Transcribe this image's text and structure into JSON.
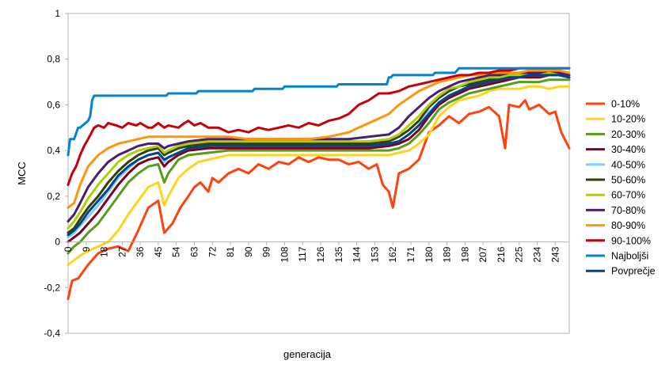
{
  "chart_data": {
    "type": "line",
    "title": "",
    "xlabel": "generacija",
    "ylabel": "MCC",
    "xlim": [
      0,
      250
    ],
    "ylim": [
      -0.4,
      1
    ],
    "yticks": [
      "-0,4",
      "-0,2",
      "0",
      "0,2",
      "0,4",
      "0,6",
      "0,8",
      "1"
    ],
    "xticks": [
      "0",
      "9",
      "18",
      "27",
      "36",
      "45",
      "54",
      "63",
      "72",
      "81",
      "90",
      "99",
      "108",
      "117",
      "126",
      "135",
      "144",
      "153",
      "162",
      "171",
      "180",
      "189",
      "198",
      "207",
      "216",
      "225",
      "234",
      "243"
    ],
    "grid": false,
    "legend_position": "right",
    "series": [
      {
        "name": "0-10%",
        "color": "#ff420e",
        "x": [
          0,
          2,
          5,
          10,
          15,
          20,
          25,
          30,
          35,
          40,
          45,
          48,
          52,
          56,
          60,
          63,
          66,
          70,
          72,
          75,
          80,
          85,
          90,
          95,
          100,
          105,
          110,
          115,
          120,
          125,
          130,
          135,
          140,
          145,
          150,
          154,
          157,
          160,
          162,
          165,
          170,
          175,
          180,
          185,
          190,
          195,
          200,
          205,
          210,
          215,
          218,
          220,
          225,
          228,
          230,
          235,
          240,
          243,
          246,
          250
        ],
        "y": [
          -0.25,
          -0.17,
          -0.16,
          -0.1,
          -0.05,
          -0.03,
          -0.02,
          -0.04,
          0.05,
          0.15,
          0.18,
          0.04,
          0.08,
          0.15,
          0.2,
          0.24,
          0.26,
          0.22,
          0.28,
          0.26,
          0.3,
          0.32,
          0.3,
          0.34,
          0.32,
          0.35,
          0.34,
          0.37,
          0.35,
          0.37,
          0.36,
          0.36,
          0.34,
          0.35,
          0.32,
          0.34,
          0.25,
          0.22,
          0.15,
          0.3,
          0.32,
          0.36,
          0.48,
          0.51,
          0.55,
          0.52,
          0.56,
          0.57,
          0.59,
          0.55,
          0.41,
          0.6,
          0.59,
          0.62,
          0.58,
          0.6,
          0.56,
          0.57,
          0.48,
          0.41
        ]
      },
      {
        "name": "10-20%",
        "color": "#ffd320",
        "x": [
          0,
          3,
          6,
          10,
          15,
          20,
          25,
          30,
          35,
          40,
          45,
          48,
          50,
          55,
          60,
          65,
          70,
          80,
          90,
          100,
          110,
          120,
          130,
          140,
          150,
          160,
          165,
          170,
          175,
          180,
          185,
          190,
          195,
          200,
          205,
          210,
          215,
          220,
          225,
          230,
          235,
          240,
          245,
          250
        ],
        "y": [
          -0.1,
          -0.08,
          -0.06,
          -0.04,
          -0.02,
          0.0,
          0.05,
          0.12,
          0.18,
          0.24,
          0.26,
          0.16,
          0.2,
          0.28,
          0.32,
          0.35,
          0.36,
          0.38,
          0.38,
          0.38,
          0.38,
          0.38,
          0.38,
          0.38,
          0.38,
          0.38,
          0.39,
          0.4,
          0.43,
          0.47,
          0.55,
          0.59,
          0.62,
          0.63,
          0.64,
          0.66,
          0.67,
          0.67,
          0.67,
          0.68,
          0.68,
          0.67,
          0.68,
          0.68
        ]
      },
      {
        "name": "20-30%",
        "color": "#579d1c",
        "x": [
          0,
          3,
          6,
          10,
          15,
          20,
          25,
          30,
          35,
          40,
          45,
          48,
          50,
          55,
          60,
          70,
          80,
          90,
          100,
          110,
          120,
          130,
          140,
          150,
          160,
          165,
          170,
          175,
          180,
          185,
          190,
          195,
          200,
          205,
          210,
          215,
          220,
          225,
          230,
          235,
          240,
          245,
          250
        ],
        "y": [
          -0.05,
          -0.02,
          0.0,
          0.04,
          0.08,
          0.14,
          0.2,
          0.26,
          0.3,
          0.33,
          0.34,
          0.26,
          0.3,
          0.36,
          0.38,
          0.39,
          0.4,
          0.4,
          0.4,
          0.4,
          0.4,
          0.4,
          0.4,
          0.4,
          0.4,
          0.41,
          0.43,
          0.47,
          0.52,
          0.58,
          0.61,
          0.63,
          0.65,
          0.66,
          0.67,
          0.68,
          0.69,
          0.7,
          0.7,
          0.7,
          0.71,
          0.71,
          0.71
        ]
      },
      {
        "name": "30-40%",
        "color": "#7e0021",
        "x": [
          0,
          3,
          6,
          10,
          15,
          20,
          25,
          30,
          35,
          40,
          45,
          48,
          50,
          55,
          60,
          70,
          80,
          90,
          100,
          110,
          120,
          130,
          140,
          150,
          160,
          165,
          170,
          175,
          180,
          185,
          190,
          195,
          200,
          205,
          210,
          215,
          220,
          225,
          230,
          235,
          240,
          245,
          250
        ],
        "y": [
          0.0,
          0.02,
          0.04,
          0.08,
          0.13,
          0.19,
          0.25,
          0.3,
          0.34,
          0.36,
          0.37,
          0.33,
          0.35,
          0.38,
          0.4,
          0.41,
          0.41,
          0.41,
          0.41,
          0.41,
          0.41,
          0.41,
          0.41,
          0.41,
          0.42,
          0.43,
          0.45,
          0.49,
          0.55,
          0.6,
          0.63,
          0.65,
          0.67,
          0.68,
          0.69,
          0.7,
          0.71,
          0.72,
          0.72,
          0.72,
          0.73,
          0.73,
          0.72
        ]
      },
      {
        "name": "40-50%",
        "color": "#83caff",
        "x": [
          0,
          3,
          6,
          10,
          15,
          20,
          25,
          30,
          35,
          40,
          45,
          48,
          50,
          55,
          60,
          70,
          80,
          90,
          100,
          110,
          120,
          130,
          140,
          150,
          160,
          165,
          170,
          175,
          180,
          185,
          190,
          195,
          200,
          205,
          210,
          215,
          220,
          225,
          230,
          235,
          240,
          245,
          250
        ],
        "y": [
          0.02,
          0.04,
          0.07,
          0.11,
          0.16,
          0.22,
          0.28,
          0.32,
          0.36,
          0.38,
          0.39,
          0.35,
          0.37,
          0.39,
          0.41,
          0.42,
          0.42,
          0.42,
          0.42,
          0.42,
          0.42,
          0.42,
          0.42,
          0.42,
          0.43,
          0.44,
          0.47,
          0.51,
          0.57,
          0.61,
          0.64,
          0.66,
          0.68,
          0.69,
          0.7,
          0.71,
          0.72,
          0.72,
          0.73,
          0.73,
          0.73,
          0.73,
          0.72
        ]
      },
      {
        "name": "50-60%",
        "color": "#314004",
        "x": [
          0,
          3,
          6,
          10,
          15,
          20,
          25,
          30,
          35,
          40,
          45,
          48,
          50,
          55,
          60,
          70,
          80,
          90,
          100,
          110,
          120,
          130,
          140,
          150,
          160,
          165,
          170,
          175,
          180,
          185,
          190,
          195,
          200,
          205,
          210,
          215,
          220,
          225,
          230,
          235,
          240,
          245,
          250
        ],
        "y": [
          0.04,
          0.06,
          0.1,
          0.15,
          0.2,
          0.26,
          0.31,
          0.35,
          0.38,
          0.4,
          0.41,
          0.38,
          0.39,
          0.41,
          0.42,
          0.43,
          0.43,
          0.43,
          0.43,
          0.43,
          0.43,
          0.43,
          0.43,
          0.43,
          0.44,
          0.46,
          0.49,
          0.53,
          0.59,
          0.63,
          0.66,
          0.68,
          0.69,
          0.7,
          0.71,
          0.72,
          0.73,
          0.73,
          0.74,
          0.74,
          0.74,
          0.74,
          0.73
        ]
      },
      {
        "name": "60-70%",
        "color": "#aecf00",
        "x": [
          0,
          3,
          6,
          10,
          15,
          20,
          25,
          30,
          35,
          40,
          45,
          48,
          50,
          55,
          60,
          70,
          80,
          90,
          100,
          110,
          120,
          130,
          140,
          150,
          160,
          165,
          170,
          175,
          180,
          185,
          190,
          195,
          200,
          205,
          210,
          215,
          220,
          225,
          230,
          235,
          240,
          245,
          250
        ],
        "y": [
          0.06,
          0.09,
          0.13,
          0.19,
          0.25,
          0.3,
          0.35,
          0.38,
          0.4,
          0.41,
          0.42,
          0.39,
          0.4,
          0.42,
          0.43,
          0.44,
          0.44,
          0.44,
          0.44,
          0.44,
          0.44,
          0.44,
          0.44,
          0.44,
          0.45,
          0.47,
          0.51,
          0.55,
          0.6,
          0.64,
          0.67,
          0.68,
          0.7,
          0.71,
          0.72,
          0.72,
          0.73,
          0.73,
          0.74,
          0.74,
          0.74,
          0.74,
          0.73
        ]
      },
      {
        "name": "70-80%",
        "color": "#4b1f6f",
        "x": [
          0,
          3,
          6,
          10,
          15,
          20,
          25,
          30,
          35,
          40,
          45,
          48,
          50,
          55,
          60,
          70,
          80,
          90,
          100,
          110,
          120,
          130,
          140,
          150,
          160,
          165,
          170,
          175,
          180,
          185,
          190,
          195,
          200,
          205,
          210,
          215,
          220,
          225,
          230,
          235,
          240,
          245,
          250
        ],
        "y": [
          0.09,
          0.12,
          0.17,
          0.24,
          0.3,
          0.35,
          0.38,
          0.4,
          0.42,
          0.43,
          0.43,
          0.41,
          0.42,
          0.43,
          0.44,
          0.45,
          0.45,
          0.45,
          0.45,
          0.45,
          0.45,
          0.45,
          0.45,
          0.46,
          0.47,
          0.5,
          0.55,
          0.59,
          0.63,
          0.66,
          0.68,
          0.7,
          0.71,
          0.72,
          0.73,
          0.73,
          0.74,
          0.74,
          0.74,
          0.74,
          0.75,
          0.74,
          0.73
        ]
      },
      {
        "name": "80-90%",
        "color": "#ff950e",
        "x": [
          0,
          3,
          6,
          10,
          15,
          20,
          25,
          30,
          35,
          40,
          45,
          50,
          55,
          60,
          70,
          80,
          90,
          100,
          110,
          120,
          130,
          140,
          145,
          150,
          155,
          160,
          165,
          170,
          175,
          180,
          185,
          190,
          195,
          200,
          205,
          210,
          215,
          220,
          225,
          230,
          235,
          240,
          245,
          250
        ],
        "y": [
          0.15,
          0.17,
          0.25,
          0.33,
          0.38,
          0.41,
          0.43,
          0.44,
          0.45,
          0.46,
          0.46,
          0.46,
          0.46,
          0.46,
          0.46,
          0.46,
          0.45,
          0.45,
          0.45,
          0.45,
          0.46,
          0.48,
          0.5,
          0.52,
          0.54,
          0.56,
          0.6,
          0.63,
          0.66,
          0.68,
          0.7,
          0.71,
          0.72,
          0.73,
          0.73,
          0.74,
          0.74,
          0.74,
          0.74,
          0.75,
          0.75,
          0.75,
          0.75,
          0.74
        ]
      },
      {
        "name": "90-100%",
        "color": "#c5000b",
        "x": [
          0,
          2,
          4,
          6,
          8,
          10,
          13,
          15,
          18,
          20,
          24,
          27,
          30,
          34,
          36,
          40,
          42,
          45,
          48,
          50,
          55,
          58,
          60,
          63,
          66,
          70,
          75,
          80,
          85,
          90,
          95,
          100,
          105,
          110,
          115,
          120,
          125,
          130,
          135,
          140,
          145,
          150,
          155,
          160,
          165,
          170,
          175,
          180,
          185,
          190,
          195,
          200,
          205,
          210,
          215,
          220,
          225,
          230,
          235,
          240,
          245,
          250
        ],
        "y": [
          0.25,
          0.3,
          0.33,
          0.38,
          0.42,
          0.45,
          0.5,
          0.51,
          0.5,
          0.52,
          0.51,
          0.5,
          0.52,
          0.51,
          0.52,
          0.5,
          0.5,
          0.52,
          0.5,
          0.51,
          0.5,
          0.52,
          0.53,
          0.51,
          0.52,
          0.5,
          0.5,
          0.48,
          0.49,
          0.48,
          0.5,
          0.49,
          0.5,
          0.51,
          0.5,
          0.52,
          0.51,
          0.53,
          0.54,
          0.56,
          0.6,
          0.62,
          0.65,
          0.65,
          0.66,
          0.68,
          0.69,
          0.7,
          0.71,
          0.72,
          0.73,
          0.73,
          0.74,
          0.74,
          0.75,
          0.75,
          0.76,
          0.76,
          0.76,
          0.76,
          0.76,
          0.76
        ]
      },
      {
        "name": "Najboljši",
        "color": "#0084d1",
        "x": [
          0,
          1,
          3,
          5,
          6,
          10,
          11,
          12,
          13,
          14,
          20,
          30,
          49,
          50,
          64,
          65,
          92,
          93,
          107,
          108,
          134,
          135,
          159,
          160,
          161,
          162,
          182,
          183,
          193,
          194,
          195,
          196,
          250
        ],
        "y": [
          0.38,
          0.45,
          0.45,
          0.5,
          0.5,
          0.53,
          0.55,
          0.62,
          0.64,
          0.64,
          0.64,
          0.64,
          0.64,
          0.65,
          0.65,
          0.66,
          0.66,
          0.67,
          0.67,
          0.68,
          0.68,
          0.69,
          0.69,
          0.72,
          0.72,
          0.73,
          0.73,
          0.74,
          0.74,
          0.75,
          0.76,
          0.76,
          0.76
        ]
      },
      {
        "name": "Povprečje",
        "color": "#004586",
        "x": [
          0,
          3,
          6,
          10,
          15,
          20,
          25,
          30,
          35,
          40,
          45,
          48,
          50,
          55,
          60,
          70,
          80,
          90,
          100,
          110,
          120,
          130,
          140,
          150,
          160,
          165,
          170,
          175,
          180,
          185,
          190,
          195,
          200,
          205,
          210,
          215,
          220,
          225,
          230,
          235,
          240,
          245,
          250
        ],
        "y": [
          0.03,
          0.05,
          0.08,
          0.13,
          0.18,
          0.23,
          0.29,
          0.33,
          0.36,
          0.38,
          0.39,
          0.36,
          0.37,
          0.39,
          0.41,
          0.42,
          0.42,
          0.42,
          0.42,
          0.42,
          0.42,
          0.42,
          0.42,
          0.42,
          0.43,
          0.44,
          0.47,
          0.51,
          0.56,
          0.61,
          0.64,
          0.66,
          0.68,
          0.69,
          0.7,
          0.71,
          0.72,
          0.72,
          0.73,
          0.73,
          0.73,
          0.73,
          0.72
        ]
      }
    ]
  }
}
